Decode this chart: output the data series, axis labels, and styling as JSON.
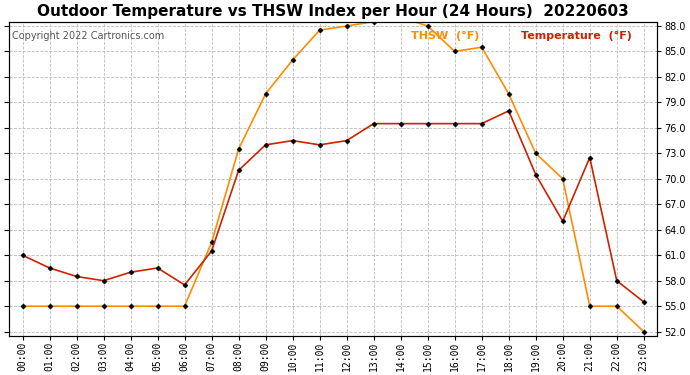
{
  "title": "Outdoor Temperature vs THSW Index per Hour (24 Hours)  20220603",
  "copyright": "Copyright 2022 Cartronics.com",
  "legend_thsw": "THSW  (°F)",
  "legend_temp": "Temperature  (°F)",
  "hours": [
    "00:00",
    "01:00",
    "02:00",
    "03:00",
    "04:00",
    "05:00",
    "06:00",
    "07:00",
    "08:00",
    "09:00",
    "10:00",
    "11:00",
    "12:00",
    "13:00",
    "14:00",
    "15:00",
    "16:00",
    "17:00",
    "18:00",
    "19:00",
    "20:00",
    "21:00",
    "22:00",
    "23:00"
  ],
  "thsw": [
    55.0,
    55.0,
    55.0,
    55.0,
    55.0,
    55.0,
    55.0,
    62.5,
    73.5,
    80.0,
    84.0,
    87.5,
    88.0,
    88.5,
    89.0,
    88.0,
    85.0,
    85.5,
    80.0,
    73.0,
    70.0,
    55.0,
    55.0,
    52.0
  ],
  "temperature": [
    61.0,
    59.5,
    58.5,
    58.0,
    59.0,
    59.5,
    57.5,
    61.5,
    71.0,
    74.0,
    74.5,
    74.0,
    74.5,
    76.5,
    76.5,
    76.5,
    76.5,
    76.5,
    78.0,
    70.5,
    65.0,
    72.5,
    58.0,
    55.5
  ],
  "thsw_color": "#FF8C00",
  "temp_color": "#CC2200",
  "ylim_min": 51.5,
  "ylim_max": 88.5,
  "yticks": [
    52.0,
    55.0,
    58.0,
    61.0,
    64.0,
    67.0,
    70.0,
    73.0,
    76.0,
    79.0,
    82.0,
    85.0,
    88.0
  ],
  "background_color": "#ffffff",
  "grid_color": "#bbbbbb",
  "marker": "D",
  "marker_size": 2.5,
  "marker_color": "#000000",
  "title_fontsize": 11,
  "copyright_fontsize": 7,
  "legend_fontsize": 8,
  "tick_fontsize": 7,
  "line_width": 1.2
}
